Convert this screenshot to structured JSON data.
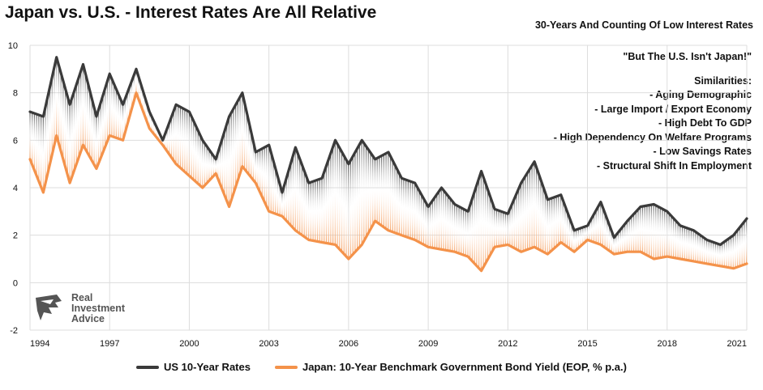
{
  "title": "Japan vs. U.S. - Interest Rates Are All Relative",
  "subtitle": "30-Years And Counting Of Low Interest Rates",
  "notes": {
    "quote": "\"But The U.S. Isn't Japan!\"",
    "similarities_title": "Similarities:",
    "items": [
      "- Aging Demographic",
      "- Large Import /  Export Economy",
      "- High Debt To GDP",
      "- High Dependency On Welfare Programs",
      "- Low Savings Rates",
      "- Structural Shift In Employment"
    ]
  },
  "logo": {
    "line1": "Real",
    "line2": "Investment",
    "line3": "Advice"
  },
  "colors": {
    "us": "#3a3a3a",
    "japan": "#f4924a",
    "grid": "#dddddd"
  },
  "chart_data": {
    "type": "line",
    "x_ticks": [
      "1994",
      "1997",
      "2000",
      "2003",
      "2006",
      "2009",
      "2012",
      "2015",
      "2018",
      "2021"
    ],
    "y_ticks": [
      "-2",
      "0",
      "2",
      "4",
      "6",
      "8",
      "10"
    ],
    "xlim": [
      1994.0,
      2021.0
    ],
    "ylim": [
      -2,
      10
    ],
    "grid": true,
    "legend_position": "bottom",
    "series": [
      {
        "name": "US 10-Year Rates",
        "color": "#3a3a3a",
        "x": [
          1994.0,
          1994.5,
          1995.0,
          1995.5,
          1996.0,
          1996.5,
          1997.0,
          1997.5,
          1998.0,
          1998.5,
          1999.0,
          1999.5,
          2000.0,
          2000.5,
          2001.0,
          2001.5,
          2002.0,
          2002.5,
          2003.0,
          2003.5,
          2004.0,
          2004.5,
          2005.0,
          2005.5,
          2006.0,
          2006.5,
          2007.0,
          2007.5,
          2008.0,
          2008.5,
          2009.0,
          2009.5,
          2010.0,
          2010.5,
          2011.0,
          2011.5,
          2012.0,
          2012.5,
          2013.0,
          2013.5,
          2014.0,
          2014.5,
          2015.0,
          2015.5,
          2016.0,
          2016.5,
          2017.0,
          2017.5,
          2018.0,
          2018.5,
          2019.0,
          2019.5,
          2020.0,
          2020.5,
          2021.0
        ],
        "values": [
          7.2,
          7.0,
          9.5,
          7.5,
          9.2,
          7.0,
          8.8,
          7.5,
          9.0,
          7.2,
          6.0,
          7.5,
          7.2,
          6.0,
          5.2,
          7.0,
          8.0,
          5.5,
          5.8,
          3.8,
          5.7,
          4.2,
          4.4,
          6.0,
          5.0,
          6.0,
          5.2,
          5.5,
          4.4,
          4.2,
          3.2,
          4.0,
          3.3,
          3.0,
          4.7,
          3.1,
          2.9,
          4.2,
          5.1,
          3.5,
          3.7,
          2.2,
          2.4,
          3.4,
          1.9,
          2.6,
          3.2,
          3.3,
          3.0,
          2.4,
          2.2,
          1.8,
          1.6,
          2.0,
          2.7
        ]
      },
      {
        "name": "Japan: 10-Year Benchmark Government Bond Yield (EOP, % p.a.)",
        "color": "#f4924a",
        "x": [
          1994.0,
          1994.5,
          1995.0,
          1995.5,
          1996.0,
          1996.5,
          1997.0,
          1997.5,
          1998.0,
          1998.5,
          1999.0,
          1999.5,
          2000.0,
          2000.5,
          2001.0,
          2001.5,
          2002.0,
          2002.5,
          2003.0,
          2003.5,
          2004.0,
          2004.5,
          2005.0,
          2005.5,
          2006.0,
          2006.5,
          2007.0,
          2007.5,
          2008.0,
          2008.5,
          2009.0,
          2009.5,
          2010.0,
          2010.5,
          2011.0,
          2011.5,
          2012.0,
          2012.5,
          2013.0,
          2013.5,
          2014.0,
          2014.5,
          2015.0,
          2015.5,
          2016.0,
          2016.5,
          2017.0,
          2017.5,
          2018.0,
          2018.5,
          2019.0,
          2019.5,
          2020.0,
          2020.5,
          2021.0
        ],
        "values": [
          5.2,
          3.8,
          6.2,
          4.2,
          5.8,
          4.8,
          6.2,
          6.0,
          8.0,
          6.5,
          5.8,
          5.0,
          4.5,
          4.0,
          4.6,
          3.2,
          4.9,
          4.2,
          3.0,
          2.8,
          2.2,
          1.8,
          1.7,
          1.6,
          1.0,
          1.6,
          2.6,
          2.2,
          2.0,
          1.8,
          1.5,
          1.4,
          1.3,
          1.1,
          0.5,
          1.5,
          1.6,
          1.3,
          1.5,
          1.2,
          1.7,
          1.3,
          1.8,
          1.6,
          1.2,
          1.3,
          1.3,
          1.0,
          1.1,
          1.0,
          0.9,
          0.8,
          0.7,
          0.6,
          0.8
        ]
      }
    ]
  }
}
